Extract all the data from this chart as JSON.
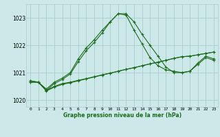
{
  "title": "Graphe pression niveau de la mer (hPa)",
  "bg_color": "#cce8e8",
  "grid_color": "#aacccc",
  "line_color": "#1a6b1a",
  "x_labels": [
    "0",
    "1",
    "2",
    "3",
    "4",
    "5",
    "6",
    "7",
    "8",
    "9",
    "10",
    "11",
    "12",
    "13",
    "14",
    "15",
    "16",
    "17",
    "18",
    "19",
    "20",
    "21",
    "22",
    "23"
  ],
  "ylim": [
    1019.75,
    1023.5
  ],
  "yticks": [
    1020,
    1021,
    1022,
    1023
  ],
  "series_main": [
    1020.7,
    1020.65,
    1020.4,
    1020.65,
    1020.8,
    1021.0,
    1021.5,
    1021.9,
    1022.2,
    1022.55,
    1022.85,
    1023.15,
    1023.1,
    1022.55,
    1022.05,
    1021.55,
    1021.25,
    1021.1,
    1021.05,
    1021.0,
    1021.05,
    1021.3,
    1021.55,
    1021.45
  ],
  "series_alt": [
    1020.7,
    1020.65,
    1020.35,
    1020.6,
    1020.75,
    1020.95,
    1021.4,
    1021.8,
    1022.1,
    1022.45,
    1022.85,
    1023.15,
    1023.15,
    1022.85,
    1022.4,
    1022.0,
    1021.6,
    1021.2,
    1021.0,
    1021.0,
    1021.05,
    1021.35,
    1021.6,
    1021.5
  ],
  "series_trend1": [
    1020.65,
    1020.65,
    1020.35,
    1020.5,
    1020.6,
    1020.65,
    1020.72,
    1020.78,
    1020.85,
    1020.92,
    1020.98,
    1021.05,
    1021.12,
    1021.18,
    1021.25,
    1021.32,
    1021.38,
    1021.45,
    1021.52,
    1021.58,
    1021.6,
    1021.65,
    1021.7,
    1021.75
  ],
  "series_trend2": [
    1020.65,
    1020.65,
    1020.33,
    1020.47,
    1020.57,
    1020.63,
    1020.7,
    1020.77,
    1020.84,
    1020.91,
    1020.98,
    1021.05,
    1021.12,
    1021.18,
    1021.25,
    1021.32,
    1021.38,
    1021.45,
    1021.52,
    1021.58,
    1021.6,
    1021.65,
    1021.7,
    1021.75
  ],
  "marker": "+",
  "figwidth": 3.2,
  "figheight": 2.0,
  "dpi": 100
}
